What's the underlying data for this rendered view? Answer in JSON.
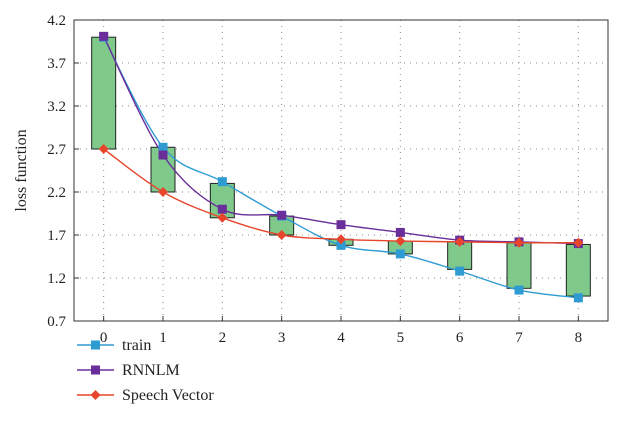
{
  "chart_data": {
    "type": "line",
    "title": "",
    "xlabel": "",
    "ylabel": "loss function",
    "x": [
      0,
      1,
      2,
      3,
      4,
      5,
      6,
      7,
      8
    ],
    "xlim": [
      -0.5,
      8.5
    ],
    "ylim": [
      0.7,
      4.2
    ],
    "xticks": [
      "0",
      "1",
      "2",
      "3",
      "4",
      "5",
      "6",
      "7",
      "8"
    ],
    "yticks": [
      "0.7",
      "1.2",
      "1.7",
      "2.2",
      "2.7",
      "3.2",
      "3.7",
      "4.2"
    ],
    "grid": "dotted",
    "legend_position": "bottom-left",
    "series": [
      {
        "name": "train",
        "color": "#2e9bd3",
        "marker": "square",
        "values": [
          4.0,
          2.72,
          2.32,
          1.92,
          1.58,
          1.48,
          1.28,
          1.06,
          0.97
        ]
      },
      {
        "name": "RNNLM",
        "color": "#6a2e9b",
        "marker": "square",
        "values": [
          4.01,
          2.63,
          2.0,
          1.93,
          1.82,
          1.73,
          1.64,
          1.62,
          1.6
        ]
      },
      {
        "name": "Speech Vector",
        "color": "#e8462c",
        "marker": "diamond",
        "values": [
          2.7,
          2.2,
          1.9,
          1.7,
          1.65,
          1.63,
          1.62,
          1.61,
          1.61
        ]
      }
    ],
    "boxes": {
      "fill": "#7fc98b",
      "low": [
        2.7,
        2.2,
        1.9,
        1.7,
        1.58,
        1.48,
        1.3,
        1.08,
        0.99
      ],
      "high": [
        4.0,
        2.72,
        2.3,
        1.92,
        1.65,
        1.63,
        1.62,
        1.61,
        1.59
      ]
    }
  }
}
